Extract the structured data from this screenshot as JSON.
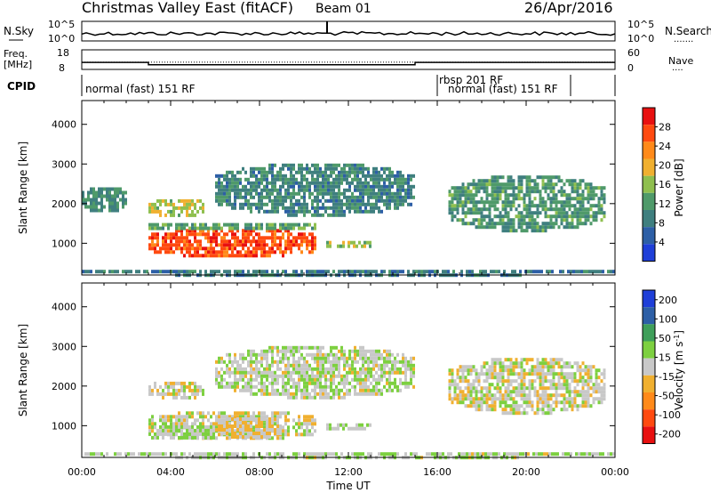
{
  "header": {
    "title": "Christmas Valley East (fitACF)",
    "beam": "Beam 01",
    "date": "26/Apr/2016"
  },
  "colors": {
    "power_scale": [
      "#1f3fd8",
      "#2d5fa6",
      "#3f7f7f",
      "#4f9a6a",
      "#8fbf4f",
      "#f0b030",
      "#ff8a1a",
      "#ff4a10",
      "#e81010"
    ],
    "velocity_scale": [
      "#e81010",
      "#ff4a10",
      "#ff8a1a",
      "#f0b030",
      "#c8c8c8",
      "#7dd040",
      "#3f9f5a",
      "#2d5fa6",
      "#1f3fd8"
    ]
  },
  "chart_data": [
    {
      "type": "line",
      "panel": "noise",
      "left_label": "N.Sky",
      "right_label": "N.Search",
      "left_ticks": [
        "10^5",
        "10^0"
      ],
      "right_ticks": [
        "10^5",
        "10^0"
      ],
      "x_range_hours": [
        0,
        24
      ],
      "note": "Sky noise solid line near 10^1.5 throughout; search noise dotted just below."
    },
    {
      "type": "line",
      "panel": "frequency",
      "left_label_lines": [
        "Freq.",
        "[MHz]"
      ],
      "right_label": "Nave",
      "left_ticks": [
        "18",
        "8"
      ],
      "right_ticks": [
        "60",
        "0"
      ],
      "freq_series": {
        "x": [
          0,
          3.0,
          3.0,
          15.0,
          15.0,
          24
        ],
        "y": [
          11.6,
          11.6,
          10.4,
          10.4,
          11.6,
          11.6
        ]
      },
      "nave_series": {
        "x": [
          0,
          24
        ],
        "y": [
          22,
          22
        ]
      }
    },
    {
      "type": "table",
      "panel": "cpid",
      "label": "CPID",
      "segments": [
        {
          "start": 0,
          "end": 16,
          "text": "normal (fast) 151 RF"
        },
        {
          "start": 16,
          "end": 16.5,
          "text": "rbsp 201 RF"
        },
        {
          "start": 16.5,
          "end": 22.0,
          "text": "normal (fast) 151 RF"
        }
      ]
    },
    {
      "type": "heatmap",
      "panel": "power",
      "ylabel": "Slant Range [km]",
      "yticks": [
        1000,
        2000,
        3000,
        4000
      ],
      "ylim": [
        200,
        4600
      ],
      "xlim": [
        0,
        24
      ],
      "colorbar": {
        "label": "Power [dB]",
        "ticks": [
          "28",
          "24",
          "20",
          "16",
          "12",
          "8",
          "4"
        ],
        "range": [
          0,
          30
        ]
      },
      "echo_regions": [
        {
          "x": [
            3.0,
            10.5
          ],
          "y": [
            650,
            1450
          ],
          "value": 25
        },
        {
          "x": [
            3.0,
            10.5
          ],
          "y": [
            1350,
            1600
          ],
          "value": 12
        },
        {
          "x": [
            11.0,
            13.0
          ],
          "y": [
            900,
            1150
          ],
          "value": 15
        },
        {
          "x": [
            3.0,
            5.5
          ],
          "y": [
            1700,
            2200
          ],
          "value": 16
        },
        {
          "x": [
            6.0,
            15.0
          ],
          "y": [
            1700,
            3100
          ],
          "value": 9
        },
        {
          "x": [
            0.0,
            2.0
          ],
          "y": [
            1800,
            2500
          ],
          "value": 10
        },
        {
          "x": [
            16.5,
            23.5
          ],
          "y": [
            1300,
            2800
          ],
          "value": 11
        },
        {
          "x": [
            0.0,
            24.0
          ],
          "y": [
            220,
            420
          ],
          "value": 8
        }
      ]
    },
    {
      "type": "heatmap",
      "panel": "velocity",
      "ylabel": "Slant Range [km]",
      "yticks": [
        1000,
        2000,
        3000,
        4000
      ],
      "ylim": [
        200,
        4600
      ],
      "xlim": [
        0,
        24
      ],
      "xlabel": "Time UT",
      "xticks": [
        "00:00",
        "04:00",
        "08:00",
        "12:00",
        "16:00",
        "20:00",
        "00:00"
      ],
      "colorbar": {
        "label": "Velocity [m s^-1]",
        "ticks": [
          "200",
          "100",
          "50",
          "15",
          "-15",
          "-50",
          "-100",
          "-200"
        ],
        "range": [
          -250,
          250
        ]
      },
      "echo_regions": [
        {
          "x": [
            3.0,
            10.5
          ],
          "y": [
            650,
            1450
          ],
          "value": 0
        },
        {
          "x": [
            3.0,
            6.0
          ],
          "y": [
            650,
            1100
          ],
          "value": 30
        },
        {
          "x": [
            6.0,
            9.0
          ],
          "y": [
            700,
            1300
          ],
          "value": -30
        },
        {
          "x": [
            11.0,
            13.0
          ],
          "y": [
            900,
            1150
          ],
          "value": 20
        },
        {
          "x": [
            3.0,
            5.5
          ],
          "y": [
            1700,
            2200
          ],
          "value": 0
        },
        {
          "x": [
            6.0,
            15.0
          ],
          "y": [
            1700,
            3100
          ],
          "value": 10
        },
        {
          "x": [
            16.5,
            23.5
          ],
          "y": [
            1300,
            2800
          ],
          "value": 0
        },
        {
          "x": [
            0.0,
            24.0
          ],
          "y": [
            220,
            420
          ],
          "value": 20
        }
      ]
    }
  ]
}
